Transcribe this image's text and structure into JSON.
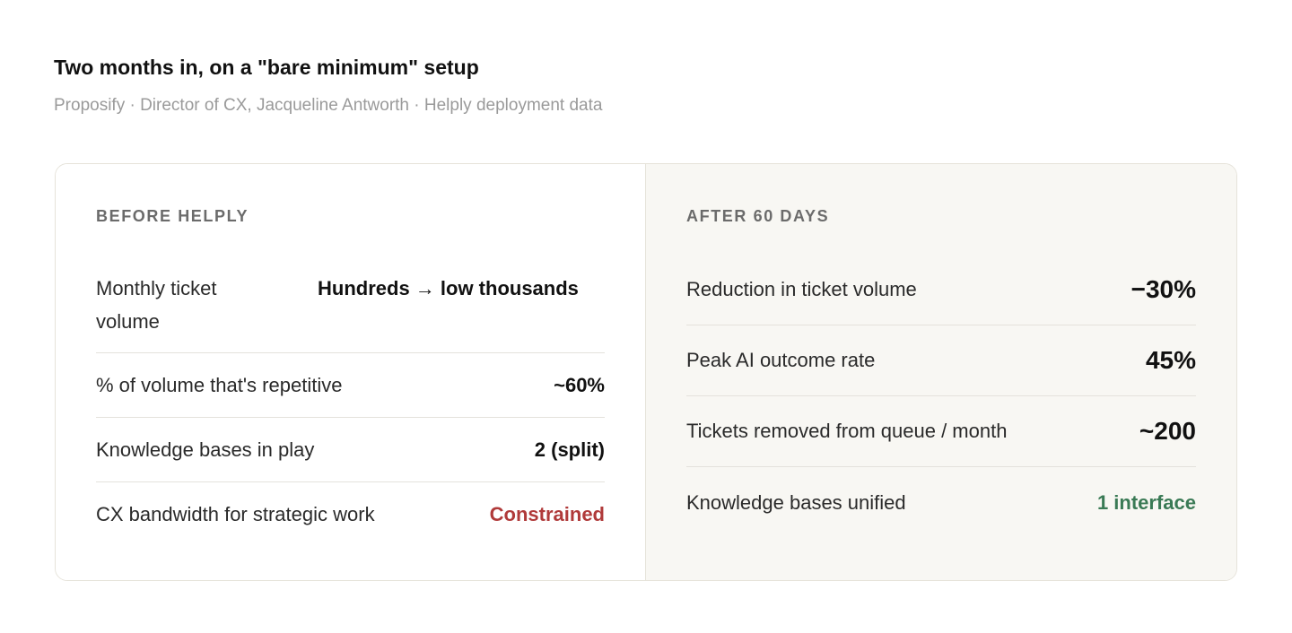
{
  "header": {
    "title": "Two months in, on a \"bare minimum\" setup",
    "subtitle": "Proposify · Director of CX, Jacqueline Antworth · Helply deployment data"
  },
  "before": {
    "heading": "BEFORE HELPLY",
    "rows": [
      {
        "label": "Monthly ticket volume",
        "value": "Hundreds → low thousands"
      },
      {
        "label": "% of volume that's repetitive",
        "value": "~60%"
      },
      {
        "label": "Knowledge bases in play",
        "value": "2 (split)"
      },
      {
        "label": "CX bandwidth for strategic work",
        "value": "Constrained"
      }
    ]
  },
  "after": {
    "heading": "AFTER 60 DAYS",
    "rows": [
      {
        "label": "Reduction in ticket volume",
        "value": "−30%"
      },
      {
        "label": "Peak AI outcome rate",
        "value": "45%"
      },
      {
        "label": "Tickets removed from queue / month",
        "value": "~200"
      },
      {
        "label": "Knowledge bases unified",
        "value": "1 interface"
      }
    ]
  }
}
